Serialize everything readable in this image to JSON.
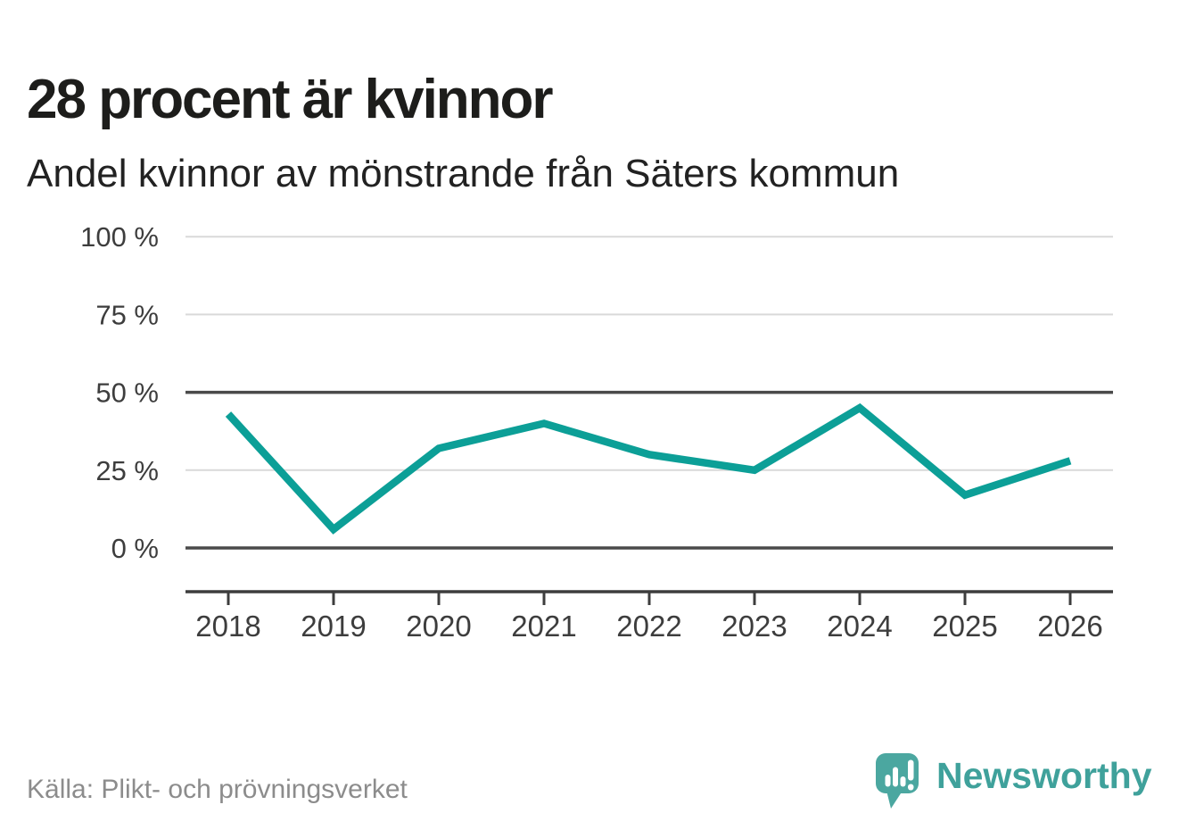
{
  "header": {
    "title": "28 procent är kvinnor",
    "subtitle": "Andel kvinnor av mönstrande från Säters kommun"
  },
  "chart_data": {
    "type": "line",
    "x": [
      2018,
      2019,
      2020,
      2021,
      2022,
      2023,
      2024,
      2025,
      2026
    ],
    "series": [
      {
        "name": "Andel kvinnor av mönstrande från Säters kommun",
        "values": [
          43,
          6,
          32,
          40,
          30,
          25,
          45,
          17,
          28
        ]
      }
    ],
    "title": "28 procent är kvinnor",
    "xlabel": "",
    "ylabel": "",
    "ylim": [
      0,
      100
    ],
    "yticks": [
      0,
      25,
      50,
      75,
      100
    ],
    "ytick_labels": [
      "0 %",
      "25 %",
      "50 %",
      "75 %",
      "100 %"
    ],
    "emphasized_yticks": [
      0,
      50
    ],
    "grid": "horizontal",
    "legend_position": "none",
    "colors": {
      "line": "#0c9f97",
      "grid_light": "#d9d9d9",
      "grid_dark": "#4a4a4a",
      "axis": "#3d3d3d",
      "tick_text": "#3d3d3d"
    }
  },
  "footer": {
    "source": "Källa: Plikt- och prövningsverket"
  },
  "brand": {
    "name": "Newsworthy",
    "icon": "speech-bubble-bar-chart-icon",
    "icon_color": "#4ba7a0",
    "text_color": "#3fa19b"
  }
}
